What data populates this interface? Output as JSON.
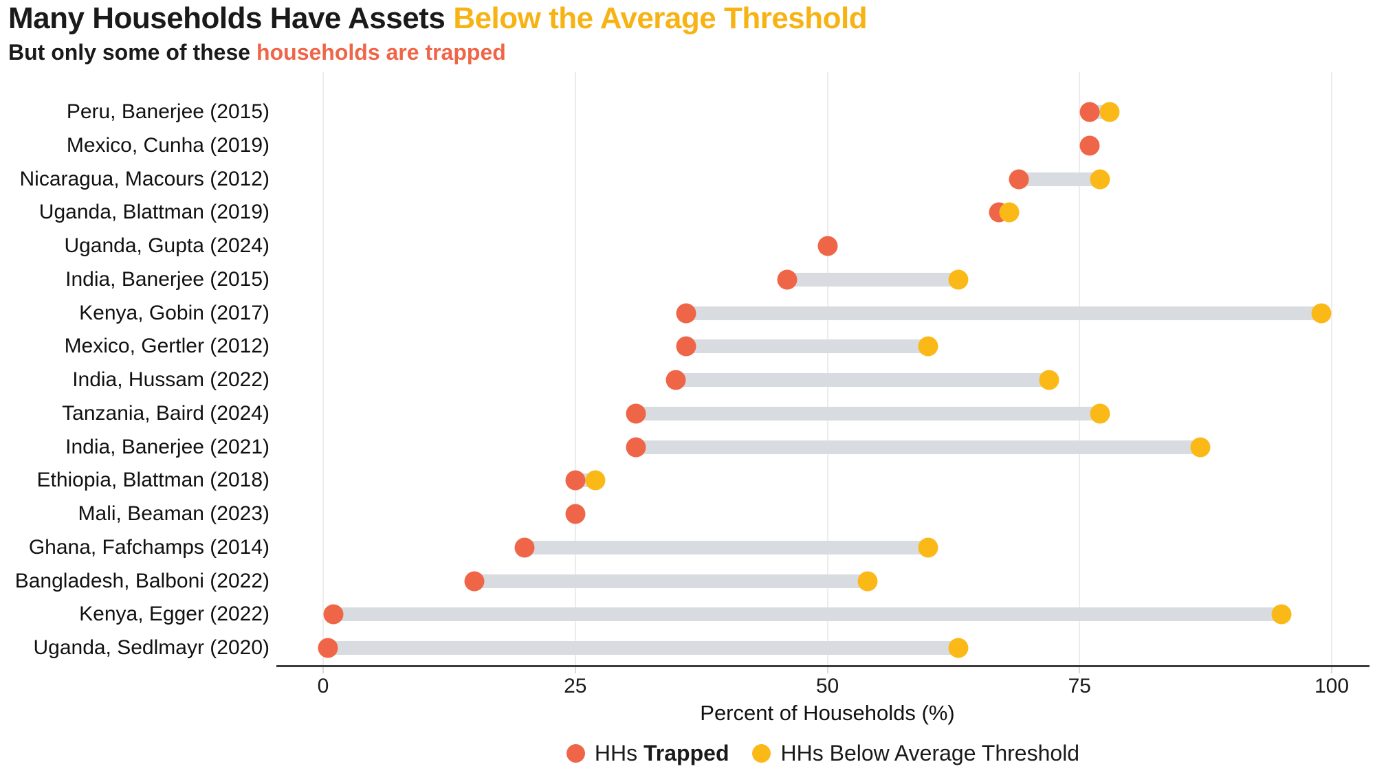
{
  "title": {
    "black": "Many Households Have Assets",
    "accent": "Below the Average Threshold"
  },
  "subtitle": {
    "black": "But only some of these",
    "accent": "households are trapped"
  },
  "colors": {
    "trapped": "#EF6548",
    "below_threshold": "#FBB917",
    "title_accent": "#F6B313",
    "subtitle_accent": "#EF6548",
    "connector": "#D8DBE0",
    "gridline": "#ECECEC",
    "axis": "#3B3B3B"
  },
  "chart_data": {
    "type": "dumbbell",
    "title": "Many Households Have Assets Below the Average Threshold",
    "subtitle": "But only some of these households are trapped",
    "xlabel": "Percent of Households (%)",
    "xlim": [
      0,
      100
    ],
    "x_ticks": [
      0,
      25,
      50,
      75,
      100
    ],
    "grid": "vertical-light",
    "legend_position": "bottom-center",
    "legend": [
      {
        "prefix": "HHs",
        "bold": "Trapped",
        "color": "#EF6548"
      },
      {
        "label": "HHs Below Average Threshold",
        "color": "#FBB917"
      }
    ],
    "series_names": [
      "HHs Trapped",
      "HHs Below Average Threshold"
    ],
    "rows": [
      {
        "label": "Peru, Banerjee (2015)",
        "trapped": 76,
        "below_threshold": 78
      },
      {
        "label": "Mexico, Cunha (2019)",
        "trapped": 76,
        "below_threshold": null
      },
      {
        "label": "Nicaragua, Macours (2012)",
        "trapped": 69,
        "below_threshold": 77
      },
      {
        "label": "Uganda, Blattman (2019)",
        "trapped": 67,
        "below_threshold": 68
      },
      {
        "label": "Uganda, Gupta (2024)",
        "trapped": 50,
        "below_threshold": null
      },
      {
        "label": "India, Banerjee (2015)",
        "trapped": 46,
        "below_threshold": 63
      },
      {
        "label": "Kenya, Gobin (2017)",
        "trapped": 36,
        "below_threshold": 99
      },
      {
        "label": "Mexico, Gertler (2012)",
        "trapped": 36,
        "below_threshold": 60
      },
      {
        "label": "India, Hussam (2022)",
        "trapped": 35,
        "below_threshold": 72
      },
      {
        "label": "Tanzania, Baird (2024)",
        "trapped": 31,
        "below_threshold": 77
      },
      {
        "label": "India, Banerjee (2021)",
        "trapped": 31,
        "below_threshold": 87
      },
      {
        "label": "Ethiopia, Blattman (2018)",
        "trapped": 25,
        "below_threshold": 27
      },
      {
        "label": "Mali, Beaman (2023)",
        "trapped": 25,
        "below_threshold": null
      },
      {
        "label": "Ghana, Fafchamps (2014)",
        "trapped": 20,
        "below_threshold": 60
      },
      {
        "label": "Bangladesh, Balboni (2022)",
        "trapped": 15,
        "below_threshold": 54
      },
      {
        "label": "Kenya, Egger (2022)",
        "trapped": 1,
        "below_threshold": 95
      },
      {
        "label": "Uganda, Sedlmayr (2020)",
        "trapped": 0.5,
        "below_threshold": 63
      }
    ]
  }
}
